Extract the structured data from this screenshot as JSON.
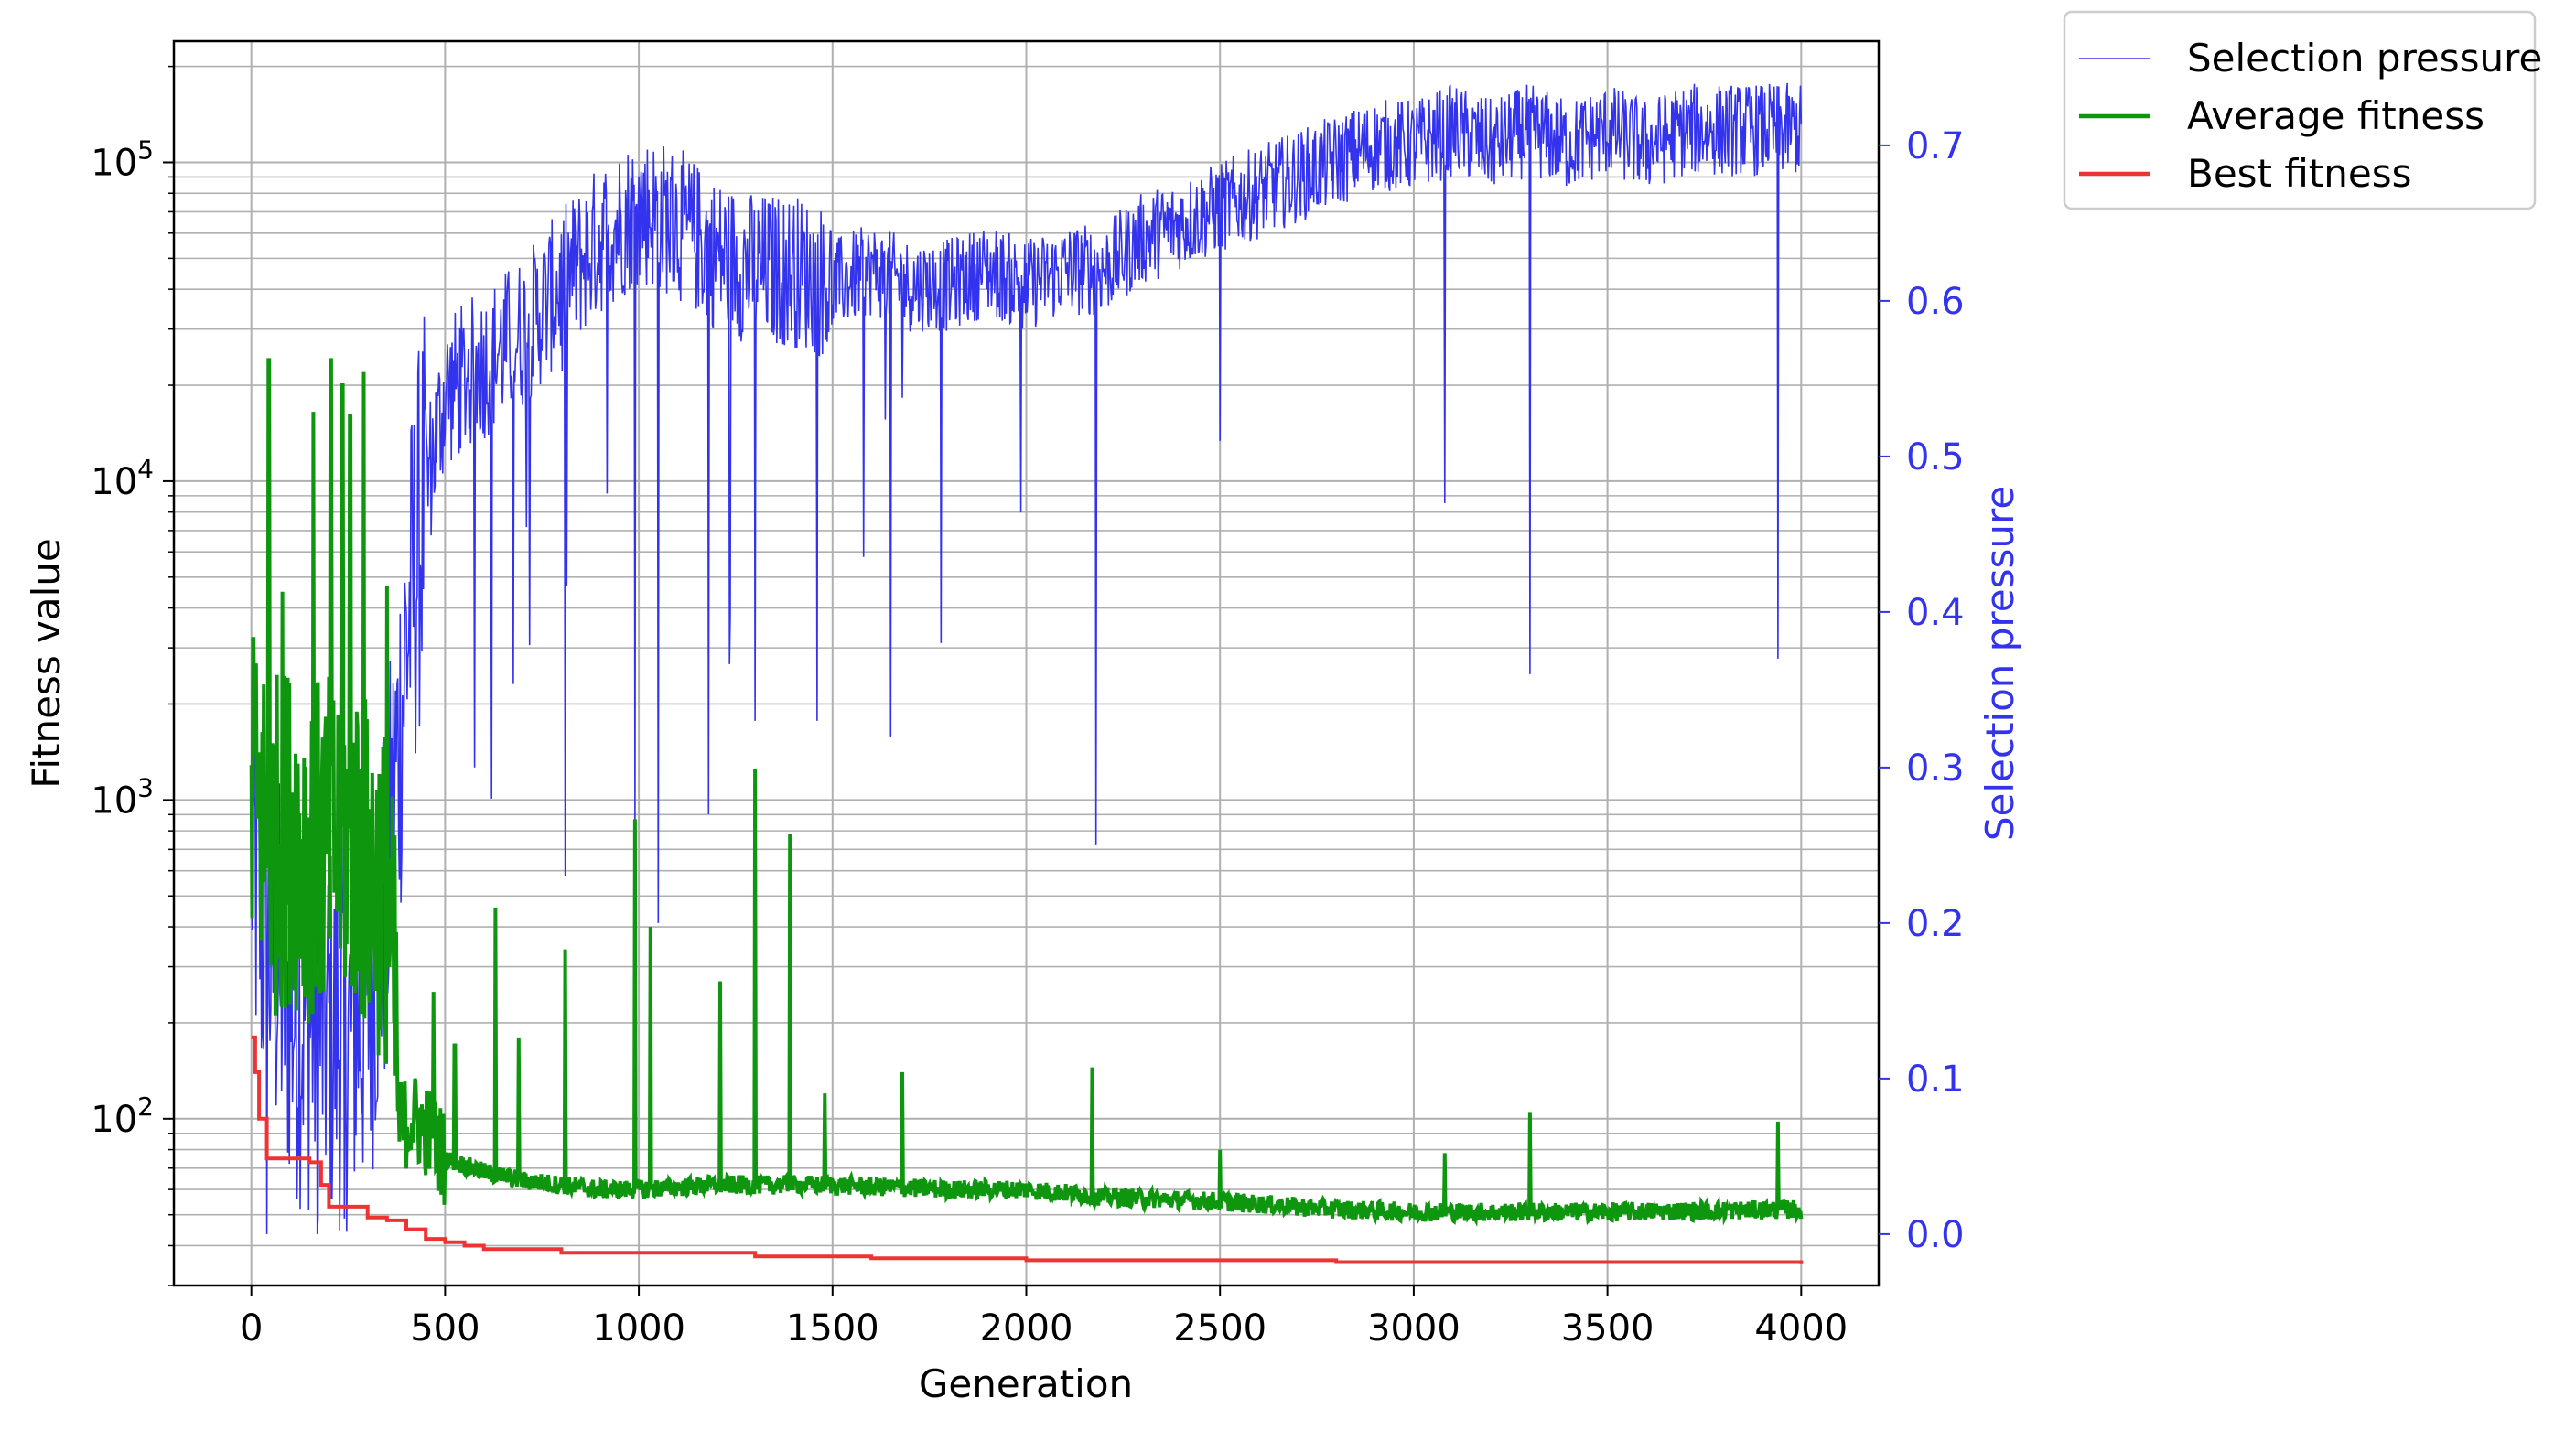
{
  "chart_data": {
    "type": "line",
    "xlabel": "Generation",
    "ylabel_left": "Fitness value",
    "ylabel_right": "Selection pressure",
    "xlim": [
      -200,
      4200
    ],
    "x_ticks": [
      0,
      500,
      1000,
      1500,
      2000,
      2500,
      3000,
      3500,
      4000
    ],
    "y_left_scale": "log",
    "y_left_lim": [
      30,
      240000
    ],
    "y_left_ticks": [
      {
        "value": 100,
        "base": "10",
        "exp": "2"
      },
      {
        "value": 1000,
        "base": "10",
        "exp": "3"
      },
      {
        "value": 10000,
        "base": "10",
        "exp": "4"
      },
      {
        "value": 100000,
        "base": "10",
        "exp": "5"
      }
    ],
    "y_right_lim": [
      -0.033,
      0.767
    ],
    "y_right_ticks": [
      "0.0",
      "0.1",
      "0.2",
      "0.3",
      "0.4",
      "0.5",
      "0.6",
      "0.7"
    ],
    "grid": true,
    "legend_position": "outside-top-right",
    "series": [
      {
        "name": "Selection pressure",
        "axis": "right",
        "color": "#3333ee",
        "x": [
          0,
          25,
          50,
          100,
          150,
          200,
          250,
          300,
          350,
          400,
          450,
          500,
          600,
          700,
          800,
          900,
          1000,
          1100,
          1200,
          1300,
          1400,
          1500,
          1600,
          1700,
          1800,
          1900,
          2000,
          2100,
          2200,
          2300,
          2400,
          2500,
          2600,
          2700,
          2800,
          2900,
          3000,
          3100,
          3200,
          3300,
          3400,
          3500,
          3600,
          3700,
          3800,
          3900,
          4000
        ],
        "values": [
          0.25,
          0.2,
          0.18,
          0.15,
          0.14,
          0.13,
          0.13,
          0.15,
          0.22,
          0.38,
          0.48,
          0.54,
          0.56,
          0.58,
          0.61,
          0.64,
          0.66,
          0.65,
          0.63,
          0.62,
          0.62,
          0.61,
          0.62,
          0.61,
          0.61,
          0.62,
          0.61,
          0.62,
          0.62,
          0.64,
          0.65,
          0.66,
          0.67,
          0.68,
          0.69,
          0.7,
          0.7,
          0.71,
          0.7,
          0.71,
          0.7,
          0.71,
          0.7,
          0.71,
          0.71,
          0.71,
          0.71
        ],
        "dips": [
          [
            40,
            0.0
          ],
          [
            170,
            0.0
          ],
          [
            240,
            0.01
          ],
          [
            620,
            0.28
          ],
          [
            810,
            0.23
          ],
          [
            990,
            0.26
          ],
          [
            1050,
            0.2
          ],
          [
            1180,
            0.27
          ],
          [
            1300,
            0.33
          ],
          [
            1460,
            0.33
          ],
          [
            1650,
            0.32
          ],
          [
            1780,
            0.38
          ],
          [
            2180,
            0.25
          ],
          [
            2500,
            0.51
          ],
          [
            3080,
            0.47
          ],
          [
            3300,
            0.36
          ],
          [
            3940,
            0.37
          ]
        ]
      },
      {
        "name": "Average fitness",
        "axis": "left",
        "color": "#0f960f",
        "x": [
          0,
          25,
          50,
          100,
          150,
          200,
          250,
          300,
          350,
          380,
          420,
          460,
          500,
          600,
          700,
          800,
          900,
          1000,
          1200,
          1500,
          1800,
          2000,
          2200,
          2500,
          2800,
          3000,
          3500,
          4000
        ],
        "values": [
          900,
          900,
          700,
          800,
          700,
          700,
          800,
          600,
          500,
          95,
          100,
          90,
          75,
          68,
          64,
          62,
          60,
          60,
          62,
          62,
          60,
          60,
          57,
          55,
          52,
          51,
          51,
          52
        ],
        "spikes": [
          [
            5,
            3200
          ],
          [
            45,
            24000
          ],
          [
            80,
            4500
          ],
          [
            160,
            16500
          ],
          [
            205,
            24000
          ],
          [
            235,
            20000
          ],
          [
            255,
            16000
          ],
          [
            290,
            22000
          ],
          [
            350,
            4700
          ],
          [
            470,
            250
          ],
          [
            525,
            170
          ],
          [
            630,
            460
          ],
          [
            690,
            180
          ],
          [
            810,
            340
          ],
          [
            990,
            870
          ],
          [
            1030,
            400
          ],
          [
            1210,
            270
          ],
          [
            1300,
            1250
          ],
          [
            1390,
            780
          ],
          [
            1480,
            120
          ],
          [
            1680,
            140
          ],
          [
            2170,
            145
          ],
          [
            2500,
            80
          ],
          [
            3080,
            78
          ],
          [
            3300,
            105
          ],
          [
            3940,
            98
          ]
        ]
      },
      {
        "name": "Best fitness",
        "axis": "left",
        "color": "#ee3333",
        "x": [
          0,
          10,
          20,
          40,
          60,
          80,
          100,
          150,
          180,
          200,
          250,
          300,
          350,
          400,
          450,
          500,
          550,
          600,
          700,
          800,
          1000,
          1200,
          1300,
          1500,
          1600,
          2000,
          2500,
          2800,
          3000,
          3500,
          4000
        ],
        "values": [
          180,
          140,
          100,
          75,
          75,
          75,
          75,
          73,
          62,
          53,
          53,
          49,
          48,
          45,
          42,
          41,
          40,
          39,
          39,
          38,
          38,
          38,
          37,
          37,
          36.5,
          36,
          36,
          35.5,
          35.5,
          35.5,
          35
        ]
      }
    ]
  }
}
